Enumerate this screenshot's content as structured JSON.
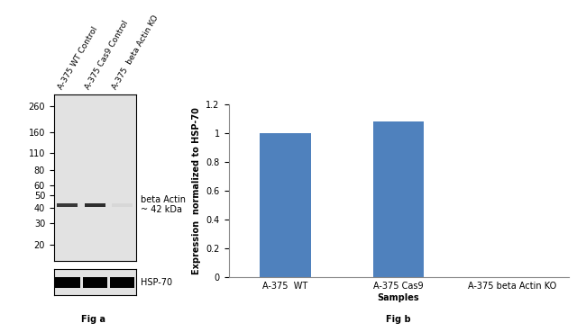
{
  "blot": {
    "caption": "Fig a",
    "lanes": [
      "A-375 WT Control",
      "A-375 Cas9 Control",
      "A-375  beta Actin KO"
    ],
    "log": "y",
    "ylim": [
      15,
      320
    ],
    "yticks": [
      20,
      30,
      40,
      50,
      60,
      80,
      110,
      160,
      260
    ],
    "tick_labels": "y",
    "band": {
      "label": [
        "beta Actin",
        "~ 42 kDa"
      ],
      "size": 42,
      "intensity": [
        0.75,
        0.8,
        0.04
      ]
    },
    "loading_control": {
      "label": "HSP-70",
      "intensity": [
        1,
        1,
        1
      ]
    }
  },
  "chart_data": {
    "type": "bar",
    "caption": "Fig b",
    "categories": [
      "A-375  WT",
      "A-375 Cas9",
      "A-375 beta Actin KO"
    ],
    "values": [
      1,
      1.08,
      0
    ],
    "color": "#4f81bd",
    "xlabel": "Samples",
    "ylabel": "Expression  normalized to HSP-70",
    "ylim": [
      0,
      1.2
    ],
    "yticks": [
      0,
      0.2,
      0.4,
      0.6,
      0.8,
      1,
      1.2
    ],
    "grid": false
  }
}
